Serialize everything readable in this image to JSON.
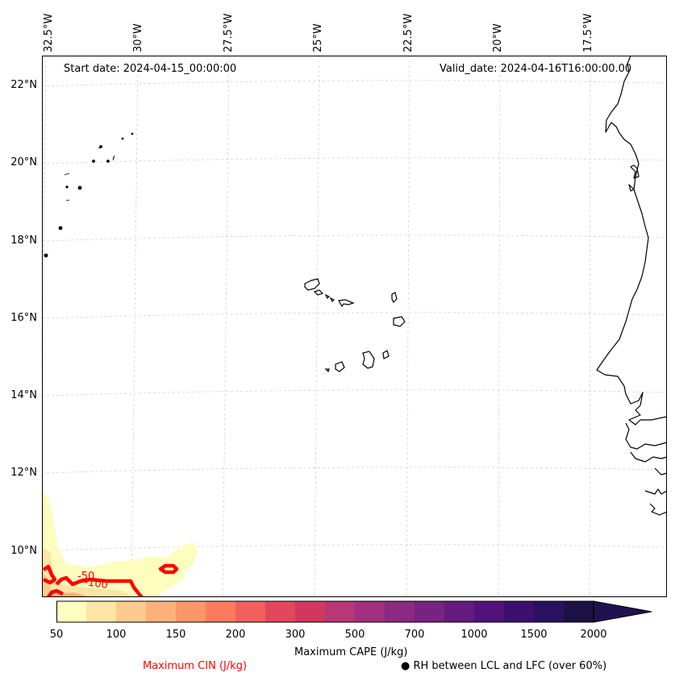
{
  "map": {
    "start_date_text": "Start date: 2024-04-15_00:00:00",
    "valid_date_text": "Valid_date: 2024-04-16T16:00:00.00",
    "longitude_labels": [
      "32.5°W",
      "30°W",
      "27.5°W",
      "25°W",
      "22.5°W",
      "20°W",
      "17.5°W"
    ],
    "latitude_labels": [
      "22°N",
      "20°N",
      "18°N",
      "16°N",
      "14°N",
      "12°N",
      "10°N"
    ],
    "cin_contour_labels": [
      "-50",
      "-100"
    ],
    "colors": {
      "coastline": "#000000",
      "gridline": "#cccccc",
      "cin_contour": "#ff0000"
    }
  },
  "colorbar": {
    "title": "Maximum CAPE (J/kg)",
    "tick_labels": [
      "50",
      "100",
      "150",
      "200",
      "300",
      "500",
      "700",
      "1000",
      "1500",
      "2000"
    ],
    "bins": [
      50,
      75,
      100,
      125,
      150,
      175,
      200,
      250,
      300,
      400,
      500,
      600,
      700,
      850,
      1000,
      1250,
      1500,
      1750,
      2000
    ],
    "colors": [
      "#fcfdbf",
      "#fde5a5",
      "#feca8d",
      "#feb07b",
      "#fd9668",
      "#fa7c5e",
      "#f1605d",
      "#e2485c",
      "#d0385e",
      "#b73779",
      "#a1307e",
      "#8c2981",
      "#782281",
      "#651a80",
      "#51127c",
      "#3b0f70",
      "#2a115f",
      "#1c1044",
      "#000004"
    ],
    "extend": "max"
  },
  "legend": {
    "cin_label": "Maximum CIN (J/kg)",
    "rh_label": "RH between LCL and LFC (over 60%)",
    "rh_marker": "●"
  }
}
